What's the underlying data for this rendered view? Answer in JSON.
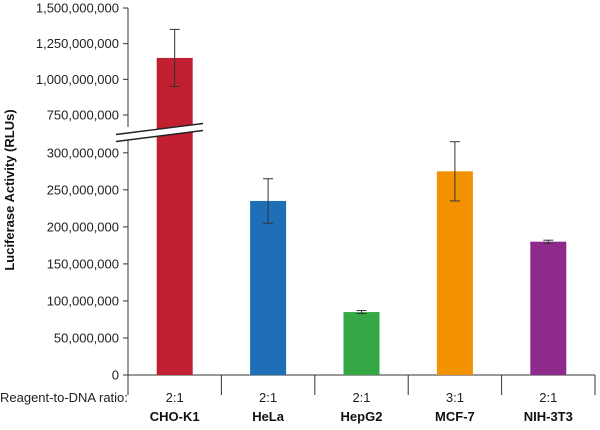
{
  "chart_data": {
    "type": "bar",
    "ylabel": "Luciferase Activity (RLUs)",
    "row_label": "Reagent-to-DNA ratio:",
    "categories": [
      "CHO-K1",
      "HeLa",
      "HepG2",
      "MCF-7",
      "NIH-3T3"
    ],
    "ratios": [
      "2:1",
      "2:1",
      "2:1",
      "3:1",
      "2:1"
    ],
    "values": [
      1150000000,
      235000000,
      85000000,
      275000000,
      180000000
    ],
    "error_low": [
      950000000,
      205000000,
      83000000,
      235000000,
      178000000
    ],
    "error_high": [
      1350000000,
      265000000,
      87000000,
      315000000,
      182000000
    ],
    "colors": [
      "#c0202f",
      "#1f6fb8",
      "#35a845",
      "#f39200",
      "#8e2a8c"
    ],
    "y_ticks_lower": [
      0,
      50000000,
      100000000,
      150000000,
      200000000,
      250000000,
      300000000
    ],
    "y_tick_labels_lower": [
      "0",
      "50,000,000",
      "100,000,000",
      "150,000,000",
      "200,000,000",
      "250,000,000",
      "300,000,000"
    ],
    "y_ticks_upper": [
      750000000,
      1000000000,
      1250000000,
      1500000000
    ],
    "y_tick_labels_upper": [
      "750,000,000",
      "1,000,000,000",
      "1,250,000,000",
      "1,500,000,000"
    ],
    "ylim_lower": [
      0,
      320000000
    ],
    "ylim_upper": [
      680000000,
      1500000000
    ],
    "axis_break": true,
    "grid": false,
    "legend": false
  }
}
